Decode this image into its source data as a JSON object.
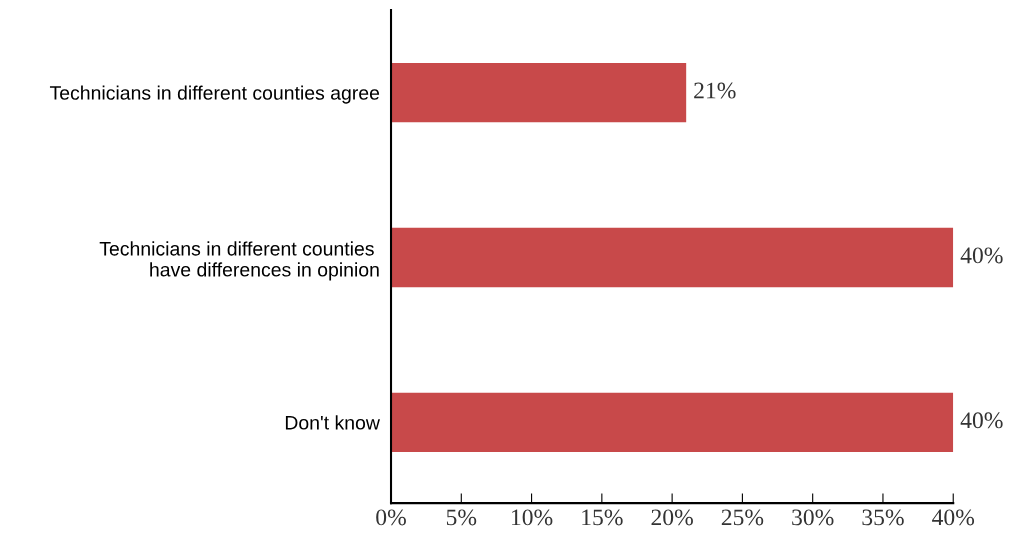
{
  "chart_data": {
    "type": "bar",
    "orientation": "horizontal",
    "categories": [
      "Technicians in different counties agree",
      "Technicians in different counties \nhave differences in opinion",
      "Don't know"
    ],
    "values": [
      21,
      40,
      40
    ],
    "value_labels": [
      "21%",
      "40%",
      "40%"
    ],
    "color": "#c8494a",
    "xlim": [
      0,
      40
    ],
    "xticks": [
      {
        "value": 0,
        "label": "0%"
      },
      {
        "value": 5,
        "label": "5%"
      },
      {
        "value": 10,
        "label": "10%"
      },
      {
        "value": 15,
        "label": "15%"
      },
      {
        "value": 20,
        "label": "20%"
      },
      {
        "value": 25,
        "label": "25%"
      },
      {
        "value": 30,
        "label": "30%"
      },
      {
        "value": 35,
        "label": "35%"
      },
      {
        "value": 40,
        "label": "40%"
      }
    ],
    "grid": false,
    "legend": false
  }
}
